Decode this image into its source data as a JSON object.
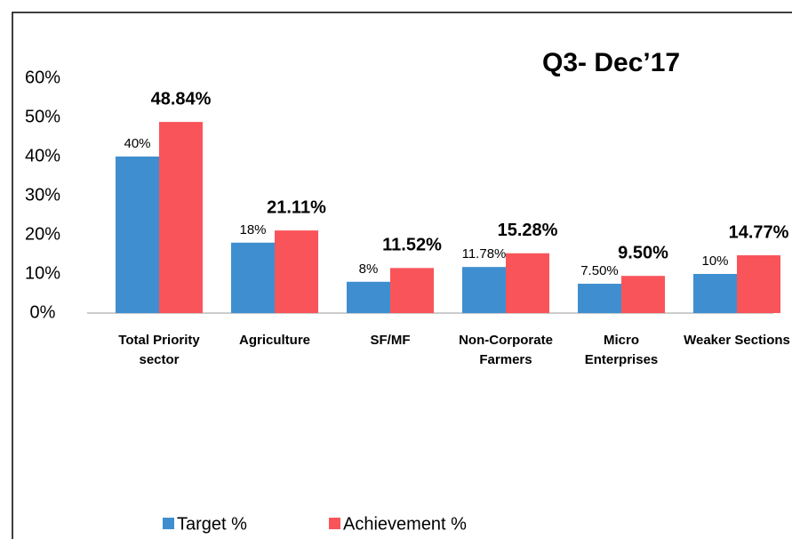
{
  "chart_data": {
    "type": "bar",
    "title": "Q3- Dec’17",
    "categories": [
      "Total Priority sector",
      "Agriculture",
      "SF/MF",
      "Non-Corporate Farmers",
      "Micro Enterprises",
      "Weaker Sections"
    ],
    "series": [
      {
        "name": "Target %",
        "color": "#3f8fd0",
        "values": [
          40,
          18,
          8,
          11.78,
          7.5,
          10
        ],
        "value_labels": [
          "40%",
          "18%",
          "8%",
          "11.78%",
          "7.50%",
          "10%"
        ]
      },
      {
        "name": "Achievement %",
        "color": "#f9545a",
        "values": [
          48.84,
          21.11,
          11.52,
          15.28,
          9.5,
          14.77
        ],
        "value_labels": [
          "48.84%",
          "21.11%",
          "11.52%",
          "15.28%",
          "9.50%",
          "14.77%"
        ]
      }
    ],
    "ylim": [
      0,
      60
    ],
    "yticks": [
      {
        "value": 0,
        "label": "0%"
      },
      {
        "value": 10,
        "label": "10%"
      },
      {
        "value": 20,
        "label": "20%"
      },
      {
        "value": 30,
        "label": "30%"
      },
      {
        "value": 40,
        "label": "40%"
      },
      {
        "value": 50,
        "label": "50%"
      },
      {
        "value": 60,
        "label": "60%"
      }
    ],
    "legend": "bottom"
  }
}
